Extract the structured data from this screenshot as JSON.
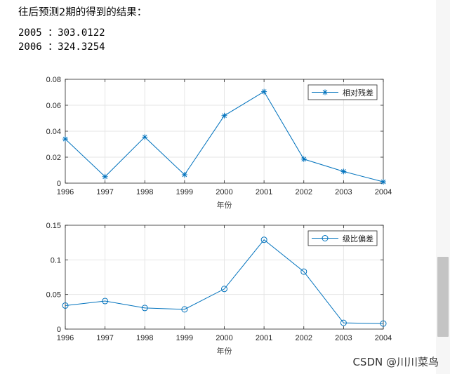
{
  "header": {
    "title": "往后预测2期的得到的结果：",
    "results": [
      "2005 ：303.0122",
      "2006 ：324.3254"
    ]
  },
  "colors": {
    "series": "#0072BD",
    "grid": "#e6e6e6",
    "axis": "#262626"
  },
  "chart_data": [
    {
      "type": "line",
      "marker": "asterisk",
      "x": [
        1996,
        1997,
        1998,
        1999,
        2000,
        2001,
        2002,
        2003,
        2004
      ],
      "series": [
        {
          "name": "相对残差",
          "values": [
            0.034,
            0.005,
            0.0355,
            0.0065,
            0.052,
            0.0705,
            0.0185,
            0.009,
            0.001
          ]
        }
      ],
      "xlabel": "年份",
      "ylabel": "",
      "xlim": [
        1996,
        2004
      ],
      "ylim": [
        0,
        0.08
      ],
      "yticks": [
        "0",
        "0.02",
        "0.04",
        "0.06",
        "0.08"
      ],
      "ytick_values": [
        0,
        0.02,
        0.04,
        0.06,
        0.08
      ],
      "grid": true,
      "legend": "top-right"
    },
    {
      "type": "line",
      "marker": "circle",
      "x": [
        1996,
        1997,
        1998,
        1999,
        2000,
        2001,
        2002,
        2003,
        2004
      ],
      "series": [
        {
          "name": "级比偏差",
          "values": [
            0.034,
            0.0405,
            0.0305,
            0.0285,
            0.058,
            0.129,
            0.083,
            0.009,
            0.008
          ]
        }
      ],
      "xlabel": "年份",
      "ylabel": "",
      "xlim": [
        1996,
        2004
      ],
      "ylim": [
        0,
        0.15
      ],
      "yticks": [
        "0",
        "0.05",
        "0.1",
        "0.15"
      ],
      "ytick_values": [
        0,
        0.05,
        0.1,
        0.15
      ],
      "grid": true,
      "legend": "top-right"
    }
  ],
  "scrollbar": {
    "name": "vertical-scrollbar"
  },
  "watermark": "CSDN @川川菜鸟"
}
